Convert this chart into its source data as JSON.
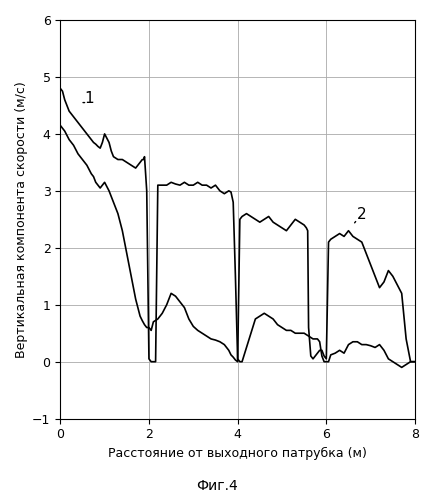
{
  "title": "",
  "xlabel": "Расстояние от выходного патрубка (м)",
  "ylabel": "Вертикальная компонента скорости (м/с)",
  "caption": "Фиг.4",
  "xlim": [
    0,
    8
  ],
  "ylim": [
    -1,
    6
  ],
  "xticks": [
    0,
    2,
    4,
    6,
    8
  ],
  "yticks": [
    -1,
    0,
    1,
    2,
    3,
    4,
    5,
    6
  ],
  "grid": true,
  "line_color": "#000000",
  "background": "#ffffff",
  "curve1_label": "1",
  "curve2_label": "2",
  "curve1_x": [
    0,
    0.05,
    0.1,
    0.2,
    0.3,
    0.4,
    0.5,
    0.6,
    0.7,
    0.75,
    0.8,
    0.85,
    0.9,
    0.95,
    1.0,
    1.1,
    1.15,
    1.2,
    1.3,
    1.4,
    1.5,
    1.6,
    1.7,
    1.8,
    1.85,
    1.88,
    1.9,
    1.95,
    2.0,
    2.05,
    2.1,
    2.15,
    2.2,
    2.3,
    2.4,
    2.5,
    2.6,
    2.7,
    2.8,
    2.9,
    3.0,
    3.1,
    3.2,
    3.3,
    3.4,
    3.5,
    3.6,
    3.7,
    3.8,
    3.85,
    3.9,
    3.95,
    4.0,
    4.05,
    4.1,
    4.2,
    4.3,
    4.4,
    4.5,
    4.6,
    4.7,
    4.8,
    4.9,
    5.0,
    5.1,
    5.2,
    5.3,
    5.4,
    5.5,
    5.6,
    5.7,
    5.8,
    5.85,
    5.9,
    5.95,
    6.0,
    6.05,
    6.1,
    6.2,
    6.3,
    6.4,
    6.5,
    6.6,
    6.7,
    6.8,
    6.9,
    7.0,
    7.1,
    7.2,
    7.3,
    7.4,
    7.5,
    7.6,
    7.7,
    7.8,
    7.9,
    8.0
  ],
  "curve1_y": [
    4.8,
    4.75,
    4.6,
    4.4,
    4.3,
    4.2,
    4.1,
    4.0,
    3.9,
    3.85,
    3.82,
    3.78,
    3.75,
    3.85,
    4.0,
    3.85,
    3.7,
    3.6,
    3.55,
    3.55,
    3.5,
    3.45,
    3.4,
    3.5,
    3.55,
    3.55,
    3.6,
    3.0,
    0.05,
    0.0,
    0.0,
    0.0,
    3.1,
    3.1,
    3.1,
    3.15,
    3.12,
    3.1,
    3.15,
    3.1,
    3.1,
    3.15,
    3.1,
    3.1,
    3.05,
    3.1,
    3.0,
    2.95,
    3.0,
    2.98,
    2.8,
    1.5,
    0.05,
    0.0,
    0.0,
    0.25,
    0.5,
    0.75,
    0.8,
    0.85,
    0.8,
    0.75,
    0.65,
    0.6,
    0.55,
    0.55,
    0.5,
    0.5,
    0.5,
    0.45,
    0.4,
    0.4,
    0.35,
    0.1,
    0.0,
    0.0,
    0.0,
    0.12,
    0.15,
    0.2,
    0.15,
    0.3,
    0.35,
    0.35,
    0.3,
    0.3,
    0.28,
    0.25,
    0.3,
    0.2,
    0.05,
    0.0,
    -0.05,
    -0.1,
    -0.05,
    0.0,
    0.0
  ],
  "curve2_x": [
    0,
    0.05,
    0.1,
    0.2,
    0.3,
    0.4,
    0.5,
    0.6,
    0.7,
    0.75,
    0.8,
    0.85,
    0.9,
    0.95,
    1.0,
    1.1,
    1.15,
    1.2,
    1.3,
    1.4,
    1.5,
    1.6,
    1.7,
    1.8,
    1.85,
    1.9,
    1.95,
    2.0,
    2.05,
    2.1,
    2.2,
    2.3,
    2.4,
    2.5,
    2.6,
    2.7,
    2.8,
    2.9,
    3.0,
    3.1,
    3.2,
    3.3,
    3.4,
    3.5,
    3.6,
    3.7,
    3.8,
    3.85,
    3.9,
    3.95,
    4.0,
    4.05,
    4.1,
    4.2,
    4.3,
    4.4,
    4.5,
    4.6,
    4.7,
    4.8,
    4.9,
    5.0,
    5.1,
    5.2,
    5.3,
    5.4,
    5.5,
    5.55,
    5.58,
    5.6,
    5.65,
    5.7,
    5.8,
    5.85,
    5.9,
    5.95,
    6.0,
    6.05,
    6.1,
    6.2,
    6.3,
    6.4,
    6.5,
    6.6,
    6.7,
    6.8,
    6.9,
    7.0,
    7.1,
    7.2,
    7.3,
    7.4,
    7.5,
    7.6,
    7.7,
    7.8,
    7.9,
    8.0
  ],
  "curve2_y": [
    4.15,
    4.1,
    4.05,
    3.9,
    3.8,
    3.65,
    3.55,
    3.45,
    3.3,
    3.25,
    3.15,
    3.1,
    3.05,
    3.1,
    3.15,
    3.0,
    2.9,
    2.8,
    2.6,
    2.3,
    1.9,
    1.5,
    1.1,
    0.8,
    0.72,
    0.65,
    0.6,
    0.6,
    0.55,
    0.7,
    0.75,
    0.85,
    1.0,
    1.2,
    1.15,
    1.05,
    0.95,
    0.75,
    0.62,
    0.55,
    0.5,
    0.45,
    0.4,
    0.38,
    0.35,
    0.3,
    0.2,
    0.12,
    0.08,
    0.03,
    0.0,
    2.5,
    2.55,
    2.6,
    2.55,
    2.5,
    2.45,
    2.5,
    2.55,
    2.45,
    2.4,
    2.35,
    2.3,
    2.4,
    2.5,
    2.45,
    2.4,
    2.35,
    2.3,
    0.6,
    0.1,
    0.05,
    0.15,
    0.2,
    0.2,
    0.1,
    0.05,
    2.1,
    2.15,
    2.2,
    2.25,
    2.2,
    2.3,
    2.2,
    2.15,
    2.1,
    1.9,
    1.7,
    1.5,
    1.3,
    1.4,
    1.6,
    1.5,
    1.35,
    1.2,
    0.4,
    0.0,
    0.0
  ]
}
